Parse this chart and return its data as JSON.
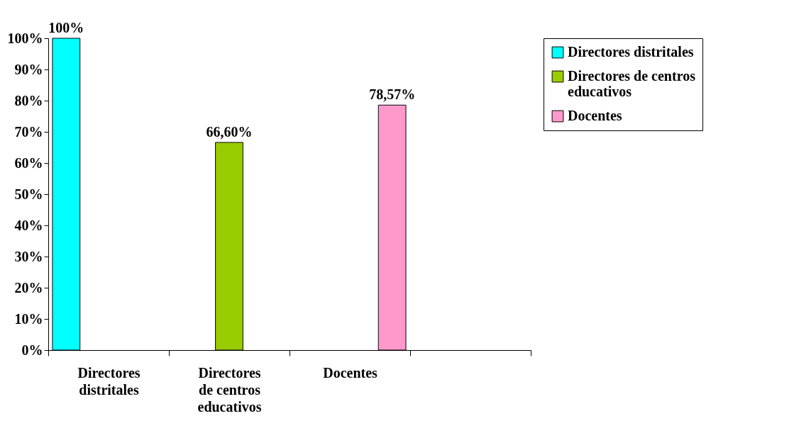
{
  "chart_data": {
    "type": "bar",
    "categories": [
      "Directores distritales",
      "Directores de centros educativos",
      "Docentes",
      null
    ],
    "series": [
      {
        "name": "Directores distritales",
        "color": "#00ffff",
        "values": [
          100,
          null,
          null,
          null
        ],
        "value_labels": [
          "100%",
          null,
          null,
          null
        ]
      },
      {
        "name": "Directores de centros educativos",
        "color": "#99cc00",
        "values": [
          null,
          66.6,
          null,
          null
        ],
        "value_labels": [
          null,
          "66,60%",
          null,
          null
        ]
      },
      {
        "name": "Docentes",
        "color": "#ff99cc",
        "values": [
          null,
          null,
          78.57,
          null
        ],
        "value_labels": [
          null,
          null,
          "78,57%",
          null
        ]
      }
    ],
    "ylim": [
      0,
      100
    ],
    "yticks": [
      {
        "value": 0,
        "label": "0%"
      },
      {
        "value": 10,
        "label": "10%"
      },
      {
        "value": 20,
        "label": "20%"
      },
      {
        "value": 30,
        "label": "30%"
      },
      {
        "value": 40,
        "label": "40%"
      },
      {
        "value": 50,
        "label": "50%"
      },
      {
        "value": 60,
        "label": "60%"
      },
      {
        "value": 70,
        "label": "70%"
      },
      {
        "value": 80,
        "label": "80%"
      },
      {
        "value": 90,
        "label": "90%"
      },
      {
        "value": 100,
        "label": "100%"
      }
    ],
    "grid": false,
    "legend": "right"
  }
}
